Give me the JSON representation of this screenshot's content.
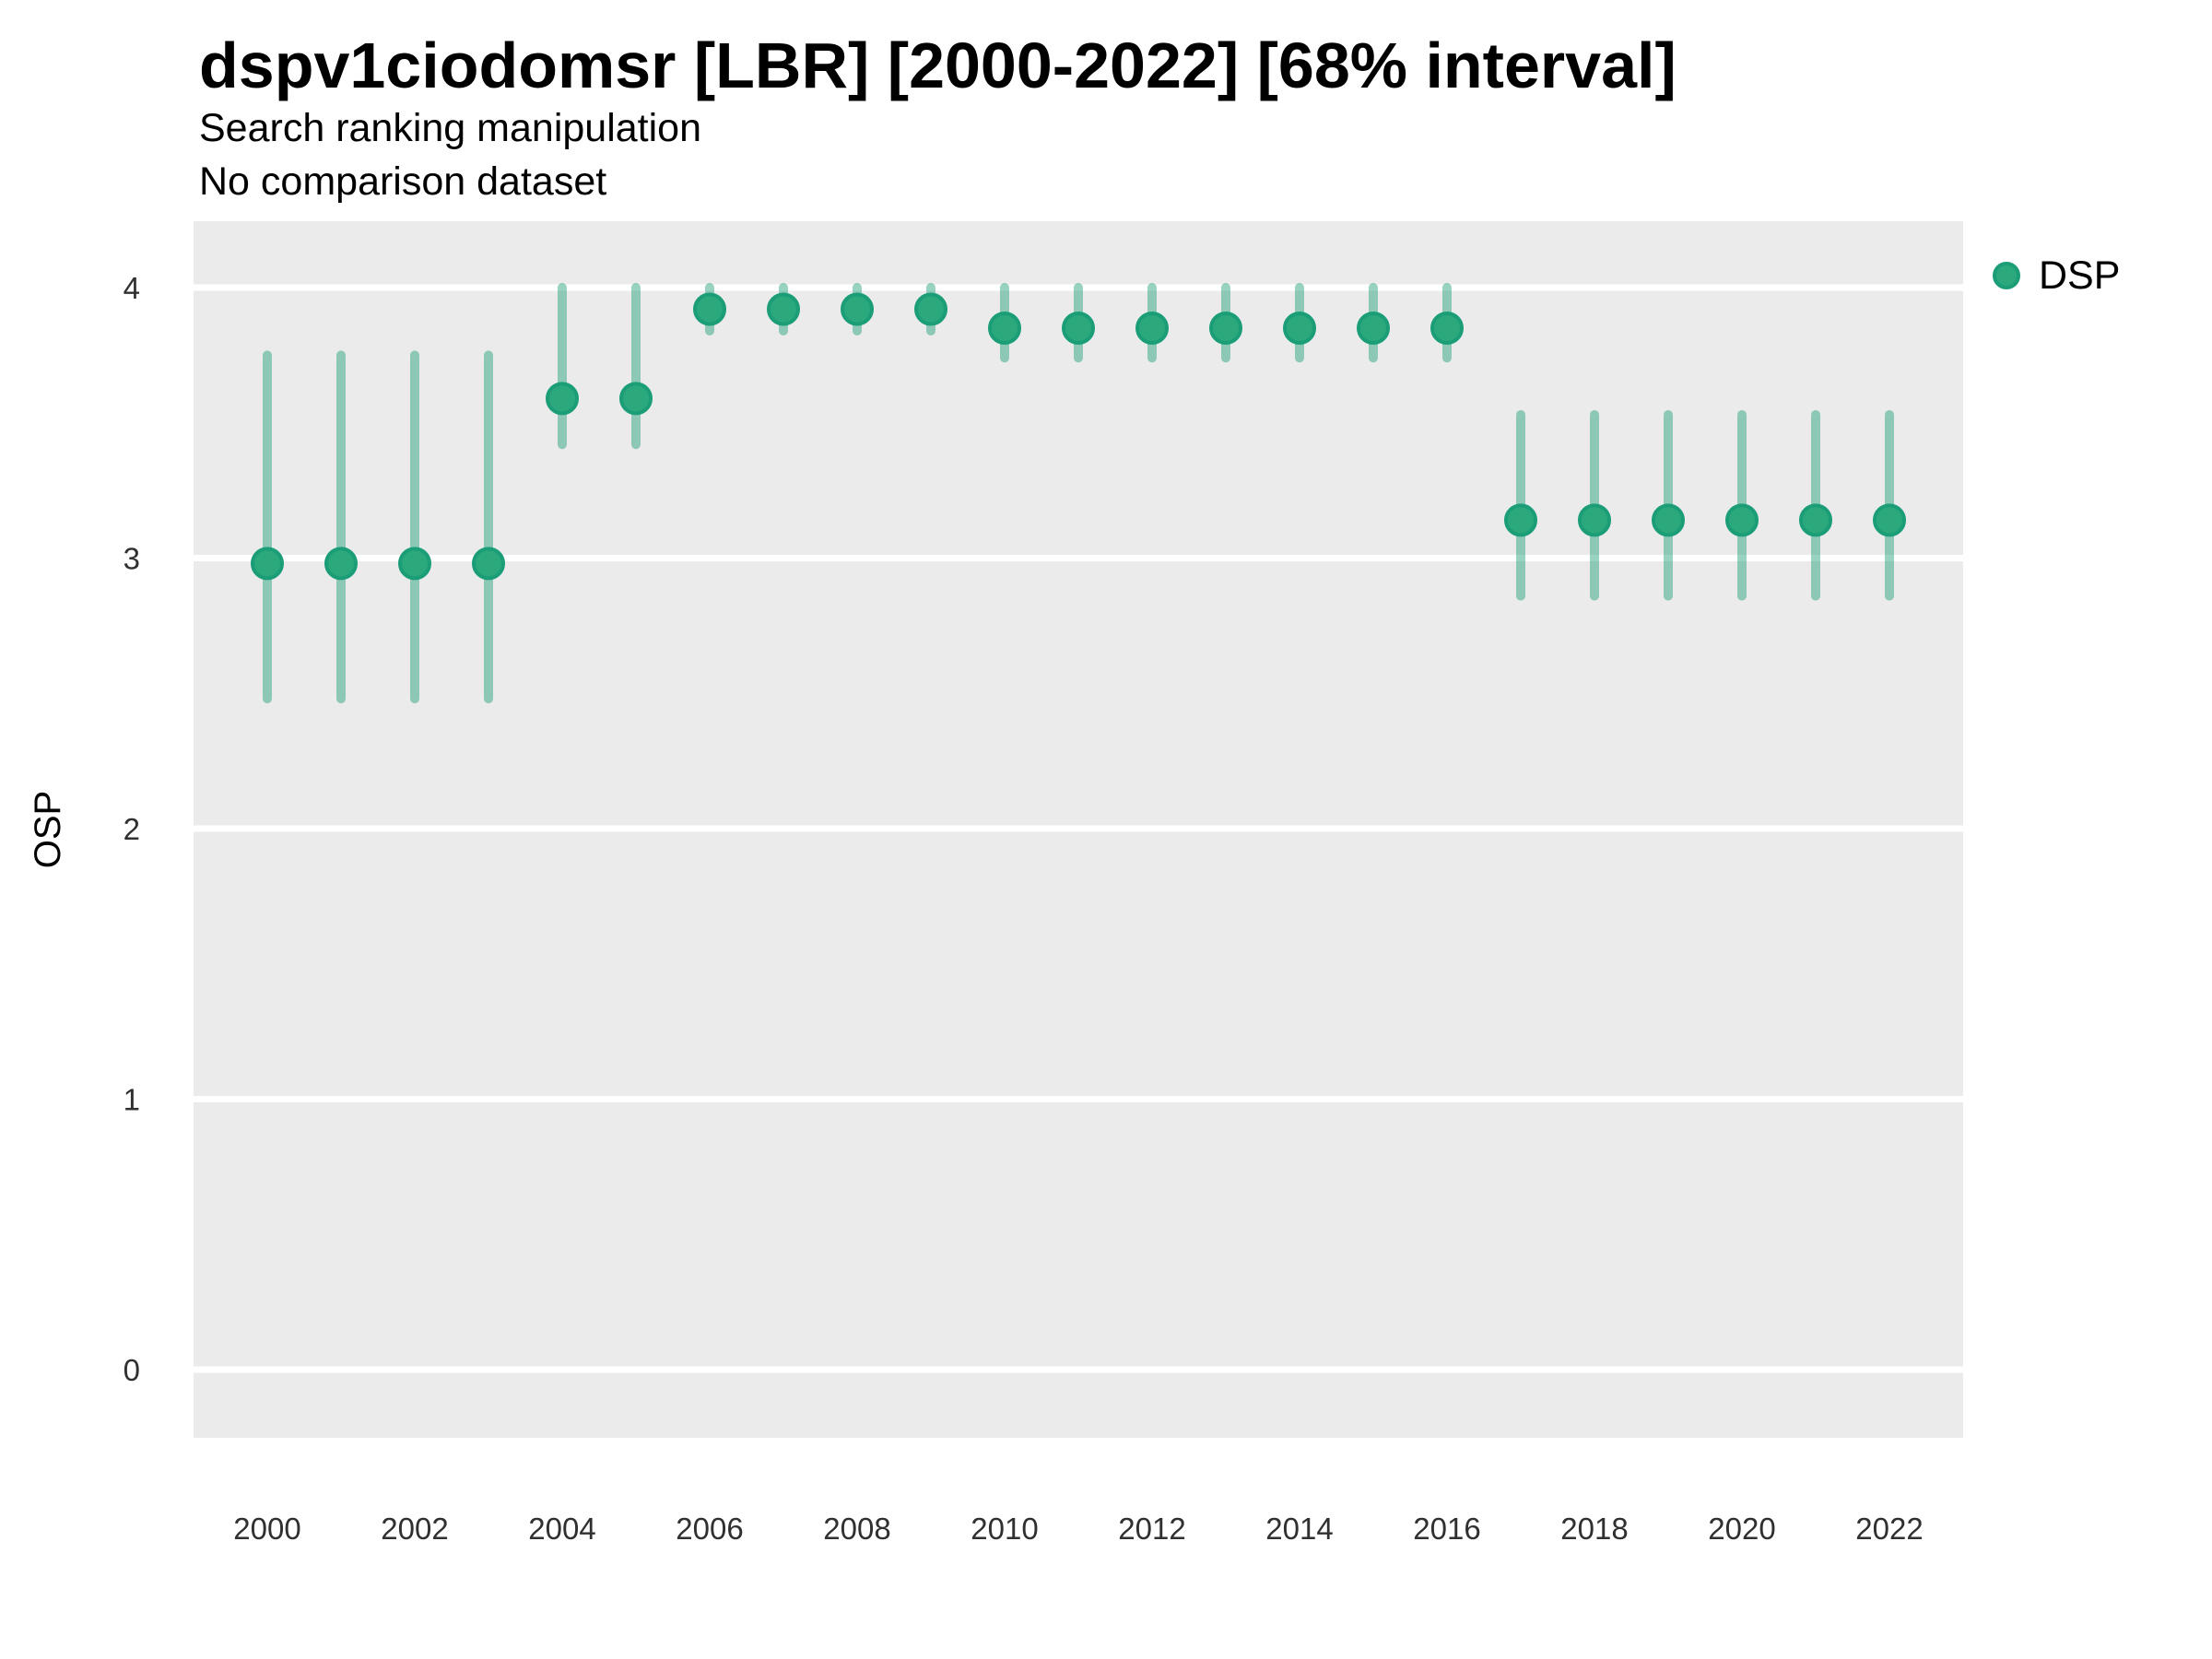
{
  "chart": {
    "title": "dspv1ciodomsr [LBR] [2000-2022] [68% interval]",
    "subtitle_line1": "Search ranking manipulation",
    "subtitle_line2": "No comparison dataset",
    "ylabel": "OSP"
  },
  "legend": {
    "label": "DSP",
    "marker": "circle-icon"
  },
  "colors": {
    "point_fill": "#2ca87d",
    "point_stroke": "#1b9e77",
    "interval_bar": "rgba(27,158,119,0.45)",
    "panel_background": "#ebebeb",
    "gridline": "#ffffff",
    "tick_text": "#303030"
  },
  "chart_data": {
    "type": "scatter",
    "title": "dspv1ciodomsr [LBR] [2000-2022] [68% interval]",
    "subtitle": [
      "Search ranking manipulation",
      "No comparison dataset"
    ],
    "xlabel": "",
    "ylabel": "OSP",
    "interval_level": "68%",
    "legend_position": "right",
    "grid": "horizontal-major-only",
    "ylim": [
      -0.33,
      4.25
    ],
    "x_ticks": [
      2000,
      2002,
      2004,
      2006,
      2008,
      2010,
      2012,
      2014,
      2016,
      2018,
      2020,
      2022
    ],
    "y_ticks": [
      0,
      1,
      2,
      3,
      4
    ],
    "series": [
      {
        "name": "DSP",
        "x": [
          2000,
          2001,
          2002,
          2003,
          2004,
          2005,
          2006,
          2007,
          2008,
          2009,
          2010,
          2011,
          2012,
          2013,
          2014,
          2015,
          2016,
          2017,
          2018,
          2019,
          2020,
          2021,
          2022
        ],
        "values": [
          2.98,
          2.98,
          2.98,
          2.98,
          3.59,
          3.59,
          3.92,
          3.92,
          3.92,
          3.92,
          3.85,
          3.85,
          3.85,
          3.85,
          3.85,
          3.85,
          3.85,
          3.14,
          3.14,
          3.14,
          3.14,
          3.14,
          3.14
        ],
        "interval_low": [
          2.48,
          2.48,
          2.48,
          2.48,
          3.42,
          3.42,
          3.84,
          3.84,
          3.84,
          3.84,
          3.74,
          3.74,
          3.74,
          3.74,
          3.74,
          3.74,
          3.74,
          2.86,
          2.86,
          2.86,
          2.86,
          2.86,
          2.86
        ],
        "interval_high": [
          3.75,
          3.75,
          3.75,
          3.75,
          4.0,
          4.0,
          4.0,
          4.0,
          4.0,
          4.0,
          4.0,
          4.0,
          4.0,
          4.0,
          4.0,
          4.0,
          4.0,
          3.53,
          3.53,
          3.53,
          3.53,
          3.53,
          3.53
        ]
      }
    ]
  }
}
